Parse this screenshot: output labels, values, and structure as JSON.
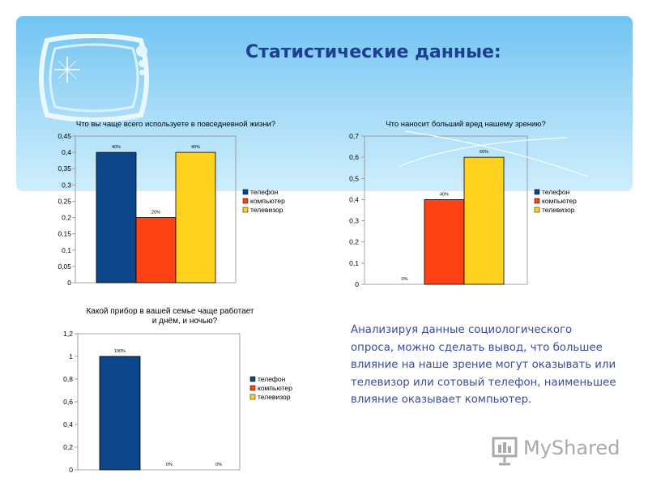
{
  "slide": {
    "title": "Статистические данные:",
    "summary": "Анализируя данные социологического опроса, можно сделать вывод, что большее влияние на наше зрение могут оказывать или телевизор или сотовый телефон, наименьшее влияние оказывает компьютер.",
    "brand": "MyShared"
  },
  "colors": {
    "телефон": "#0d4688",
    "компьютер": "#ff4213",
    "телевизор": "#ffd21f"
  },
  "chart_data": [
    {
      "type": "bar",
      "title": "Что вы чаще всего используете в повседневной жизни?",
      "categories": [
        "телефон",
        "компьютер",
        "телевизор"
      ],
      "values": [
        0.4,
        0.2,
        0.4
      ],
      "data_labels": [
        "40%",
        "20%",
        "40%"
      ],
      "y_ticks": [
        "0",
        "0,05",
        "0,1",
        "0,15",
        "0,2",
        "0,25",
        "0,3",
        "0,35",
        "0,4",
        "0,45"
      ],
      "ylim": [
        0,
        0.45
      ],
      "legend": [
        "телефон",
        "компьютер",
        "телевизор"
      ],
      "legend_position": "right",
      "grid": false
    },
    {
      "type": "bar",
      "title": "Что наносит больший вред нашему зрению?",
      "categories": [
        "телефон",
        "компьютер",
        "телевизор"
      ],
      "values": [
        0,
        0.4,
        0.6
      ],
      "data_labels": [
        "0%",
        "40%",
        "60%"
      ],
      "y_ticks": [
        "0",
        "0,1",
        "0,2",
        "0,3",
        "0,4",
        "0,5",
        "0,6",
        "0,7"
      ],
      "ylim": [
        0,
        0.7
      ],
      "legend": [
        "телефон",
        "компьютер",
        "телевизор"
      ],
      "legend_position": "right",
      "grid": false
    },
    {
      "type": "bar",
      "title_lines": [
        "Какой прибор в вашей семье чаще работает",
        "и днём, и ночью?"
      ],
      "categories": [
        "телефон",
        "компьютер",
        "телевизор"
      ],
      "values": [
        1,
        0,
        0
      ],
      "data_labels": [
        "100%",
        "0%",
        "0%"
      ],
      "y_ticks": [
        "0",
        "0,2",
        "0,4",
        "0,6",
        "0,8",
        "1",
        "1,2"
      ],
      "ylim": [
        0,
        1.2
      ],
      "legend": [
        "телефон",
        "компьютер",
        "телевизор"
      ],
      "legend_position": "right",
      "grid": false
    }
  ]
}
